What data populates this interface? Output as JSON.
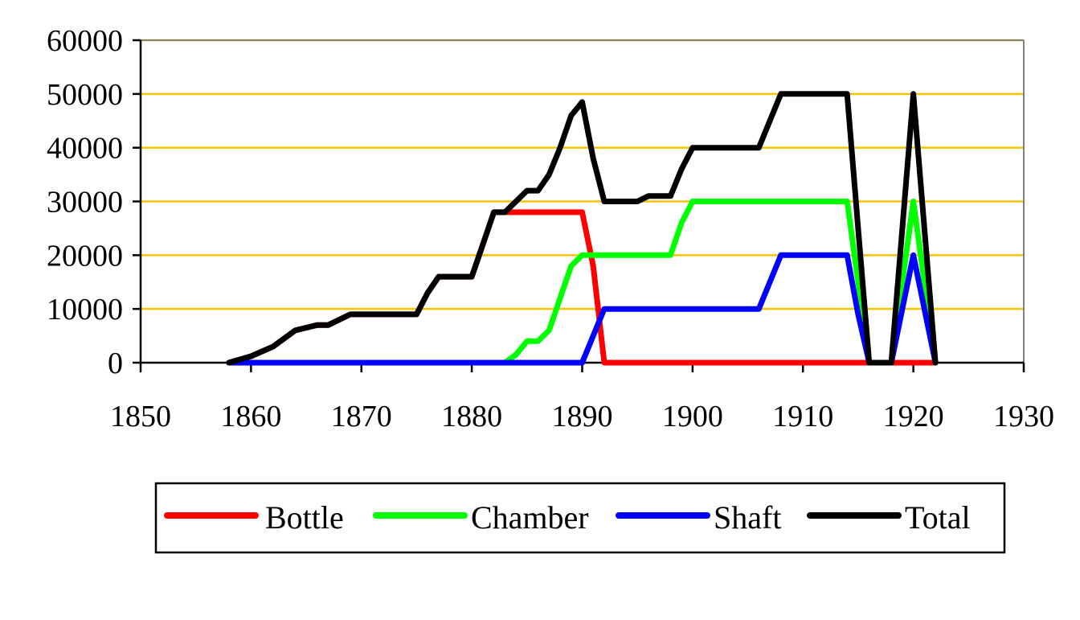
{
  "chart_data": {
    "type": "line",
    "title": "",
    "xlabel": "",
    "ylabel": "",
    "xlim": [
      1850,
      1930
    ],
    "ylim": [
      0,
      60000
    ],
    "x_ticks": [
      "1850",
      "1860",
      "1870",
      "1880",
      "1890",
      "1900",
      "1910",
      "1920",
      "1930"
    ],
    "y_ticks": [
      "0",
      "10000",
      "20000",
      "30000",
      "40000",
      "50000",
      "60000"
    ],
    "grid": "horizontal",
    "grid_color": "#F5C400",
    "legend_position": "bottom",
    "series": [
      {
        "name": "Bottle",
        "color": "#FF0000",
        "points": [
          [
            1858,
            0
          ],
          [
            1860,
            1200
          ],
          [
            1862,
            3000
          ],
          [
            1864,
            6000
          ],
          [
            1866,
            7000
          ],
          [
            1867,
            7000
          ],
          [
            1869,
            9000
          ],
          [
            1875,
            9000
          ],
          [
            1876,
            13000
          ],
          [
            1877,
            16000
          ],
          [
            1880,
            16000
          ],
          [
            1881,
            22000
          ],
          [
            1882,
            28000
          ],
          [
            1890,
            28000
          ],
          [
            1891,
            18000
          ],
          [
            1892,
            0
          ],
          [
            1922,
            0
          ]
        ]
      },
      {
        "name": "Chamber",
        "color": "#00FF00",
        "points": [
          [
            1858,
            0
          ],
          [
            1883,
            0
          ],
          [
            1884,
            1500
          ],
          [
            1885,
            4000
          ],
          [
            1886,
            4000
          ],
          [
            1887,
            6000
          ],
          [
            1888,
            12000
          ],
          [
            1889,
            18000
          ],
          [
            1890,
            20000
          ],
          [
            1898,
            20000
          ],
          [
            1899,
            26000
          ],
          [
            1900,
            30000
          ],
          [
            1914,
            30000
          ],
          [
            1916,
            0
          ],
          [
            1918,
            0
          ],
          [
            1920,
            30000
          ],
          [
            1922,
            0
          ]
        ]
      },
      {
        "name": "Shaft",
        "color": "#0000FF",
        "points": [
          [
            1858,
            0
          ],
          [
            1890,
            0
          ],
          [
            1891,
            5000
          ],
          [
            1892,
            10000
          ],
          [
            1906,
            10000
          ],
          [
            1908,
            20000
          ],
          [
            1914,
            20000
          ],
          [
            1915,
            9000
          ],
          [
            1916,
            0
          ],
          [
            1918,
            0
          ],
          [
            1920,
            20000
          ],
          [
            1922,
            0
          ]
        ]
      },
      {
        "name": "Total",
        "color": "#000000",
        "points": [
          [
            1858,
            0
          ],
          [
            1860,
            1200
          ],
          [
            1862,
            3000
          ],
          [
            1864,
            6000
          ],
          [
            1866,
            7000
          ],
          [
            1867,
            7000
          ],
          [
            1869,
            9000
          ],
          [
            1875,
            9000
          ],
          [
            1876,
            13000
          ],
          [
            1877,
            16000
          ],
          [
            1880,
            16000
          ],
          [
            1881,
            22000
          ],
          [
            1882,
            28000
          ],
          [
            1883,
            28000
          ],
          [
            1884,
            30000
          ],
          [
            1885,
            32000
          ],
          [
            1886,
            32000
          ],
          [
            1887,
            35000
          ],
          [
            1888,
            40000
          ],
          [
            1889,
            46000
          ],
          [
            1890,
            48500
          ],
          [
            1891,
            38000
          ],
          [
            1892,
            30000
          ],
          [
            1895,
            30000
          ],
          [
            1896,
            31000
          ],
          [
            1898,
            31000
          ],
          [
            1899,
            36000
          ],
          [
            1900,
            40000
          ],
          [
            1906,
            40000
          ],
          [
            1908,
            50000
          ],
          [
            1914,
            50000
          ],
          [
            1915,
            25000
          ],
          [
            1916,
            0
          ],
          [
            1918,
            0
          ],
          [
            1920,
            50000
          ],
          [
            1922,
            0
          ]
        ]
      }
    ]
  }
}
